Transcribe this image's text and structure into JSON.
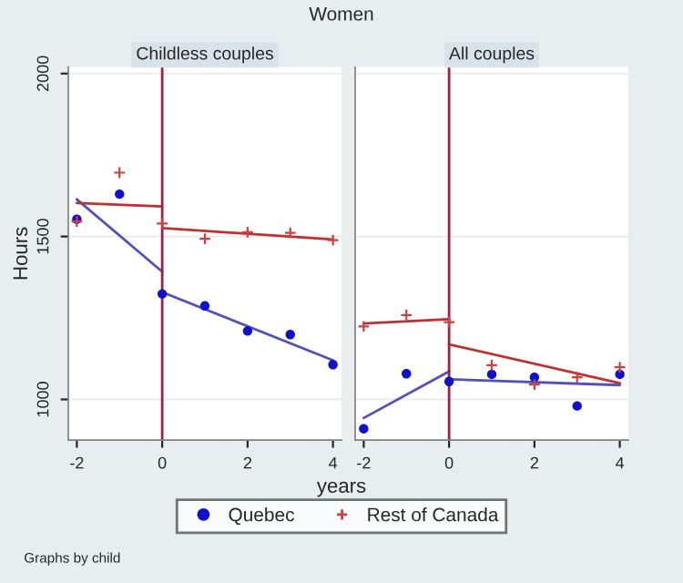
{
  "chart_data": [
    {
      "type": "scatter",
      "title": "Childless couples",
      "ylabel": "Hours",
      "annotations": [
        "Women"
      ],
      "legend": "bottom",
      "grid": "y",
      "xlim": [
        -2.2,
        4.2
      ],
      "xticks": [
        -2,
        0,
        2,
        4
      ],
      "ylim": [
        875,
        2020
      ],
      "yticks": [
        1000,
        1500,
        2000
      ],
      "ref_lines": [
        {
          "axis": "x",
          "value": 0,
          "color": "#a02040"
        }
      ],
      "x": [
        -2,
        -1,
        0,
        1,
        2,
        3,
        4
      ],
      "series": [
        {
          "name": "Quebec",
          "color": "#1010d0",
          "marker": "circle",
          "values": [
            1553,
            1630,
            1324,
            1287,
            1210,
            1199,
            1107
          ]
        },
        {
          "name": "Rest of Canada",
          "color": "#d04040",
          "marker": "cross",
          "values": [
            1546,
            1696,
            1540,
            1493,
            1513,
            1511,
            1489
          ]
        },
        {
          "type": "line",
          "color": "#5050c0",
          "x": [
            -2,
            0
          ],
          "values": [
            1614,
            1392
          ]
        },
        {
          "type": "line",
          "color": "#5050c0",
          "x": [
            0,
            4
          ],
          "values": [
            1329,
            1120
          ]
        },
        {
          "type": "line",
          "color": "#c03030",
          "x": [
            -2,
            0
          ],
          "values": [
            1603,
            1592
          ]
        },
        {
          "type": "line",
          "color": "#c03030",
          "x": [
            0,
            4
          ],
          "values": [
            1526,
            1491
          ]
        }
      ]
    },
    {
      "type": "scatter",
      "title": "All couples",
      "xlabel": "years",
      "annotations": [
        "Graphs by child"
      ],
      "grid": "y",
      "tick_labels": "x",
      "xlim": [
        -2.2,
        4.2
      ],
      "xticks": [
        -2,
        0,
        2,
        4
      ],
      "ylim": [
        875,
        2020
      ],
      "yticks": [
        1000,
        1500,
        2000
      ],
      "ref_lines": [
        {
          "axis": "x",
          "value": 0,
          "color": "#a02040"
        }
      ],
      "x": [
        -2,
        -1,
        0,
        1,
        2,
        3,
        4
      ],
      "series": [
        {
          "color": "#1010d0",
          "marker": "circle",
          "values": [
            910,
            1079,
            1055,
            1077,
            1068,
            980,
            1077
          ]
        },
        {
          "color": "#d04040",
          "marker": "cross",
          "values": [
            1224,
            1259,
            1237,
            1105,
            1046,
            1068,
            1099
          ]
        },
        {
          "type": "line",
          "color": "#5050c0",
          "x": [
            -2,
            0
          ],
          "values": [
            943,
            1086
          ]
        },
        {
          "type": "line",
          "color": "#5050c0",
          "x": [
            0,
            4
          ],
          "values": [
            1062,
            1044
          ]
        },
        {
          "type": "line",
          "color": "#c03030",
          "x": [
            -2,
            0
          ],
          "values": [
            1233,
            1246
          ]
        },
        {
          "type": "line",
          "color": "#c03030",
          "x": [
            0,
            4
          ],
          "values": [
            1169,
            1050
          ]
        }
      ]
    }
  ]
}
